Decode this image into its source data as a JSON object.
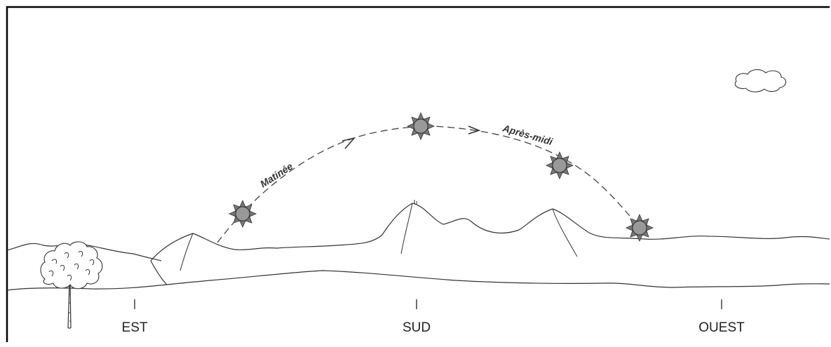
{
  "diagram": {
    "path_labels": {
      "morning": "Matinée",
      "afternoon": "Après-midi"
    },
    "directions": {
      "east": "EST",
      "south": "SUD",
      "west": "OUEST"
    },
    "colors": {
      "line": "#333333",
      "sun_fill": "#999999",
      "frame": "#000000"
    },
    "icons": [
      "sun-icon",
      "cloud-icon",
      "tree-icon",
      "arrow-icon"
    ]
  }
}
